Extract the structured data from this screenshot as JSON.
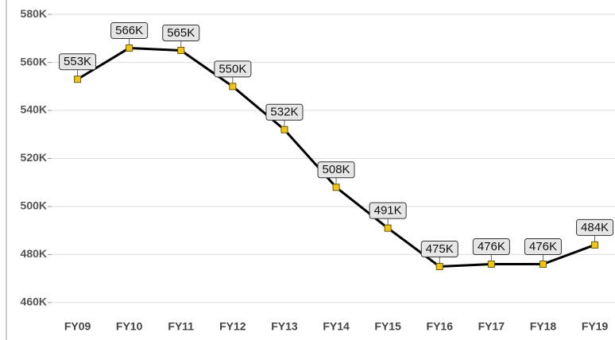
{
  "chart_data": {
    "type": "line",
    "categories": [
      "FY09",
      "FY10",
      "FY11",
      "FY12",
      "FY13",
      "FY14",
      "FY15",
      "FY16",
      "FY17",
      "FY18",
      "FY19"
    ],
    "values": [
      553000,
      566000,
      565000,
      550000,
      532000,
      508000,
      491000,
      475000,
      476000,
      476000,
      484000
    ],
    "value_labels": [
      "553K",
      "566K",
      "565K",
      "550K",
      "532K",
      "508K",
      "491K",
      "475K",
      "476K",
      "476K",
      "484K"
    ],
    "color": "#000000",
    "marker_color": "#f0c419",
    "ylim": [
      454000,
      586000
    ],
    "yticks": [
      {
        "value": 460000,
        "label": "460K"
      },
      {
        "value": 480000,
        "label": "480K"
      },
      {
        "value": 500000,
        "label": "500K"
      },
      {
        "value": 520000,
        "label": "520K"
      },
      {
        "value": 540000,
        "label": "540K"
      },
      {
        "value": 560000,
        "label": "560K"
      },
      {
        "value": 580000,
        "label": "580K"
      }
    ],
    "grid": true
  }
}
